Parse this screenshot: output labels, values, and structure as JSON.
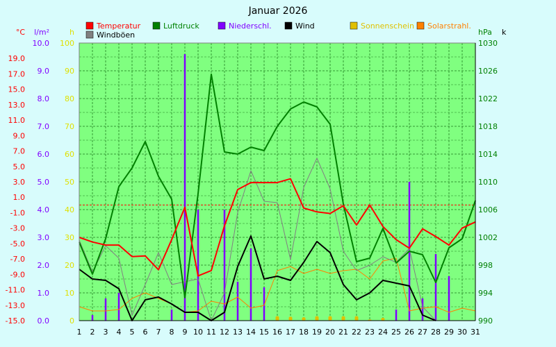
{
  "chart_data": {
    "type": "line",
    "title": "Januar 2026",
    "x": [
      1,
      2,
      3,
      4,
      5,
      6,
      7,
      8,
      9,
      10,
      11,
      12,
      13,
      14,
      15,
      16,
      17,
      18,
      19,
      20,
      21,
      22,
      23,
      24,
      25,
      26,
      27,
      28,
      29,
      30,
      31
    ],
    "x_tick_labels": [
      "1",
      "2",
      "3",
      "4",
      "5",
      "6",
      "7",
      "8",
      "9",
      "10",
      "11",
      "12",
      "13",
      "14",
      "15",
      "16",
      "17",
      "18",
      "19",
      "20",
      "21",
      "22",
      "23",
      "24",
      "25",
      "26",
      "27",
      "28",
      "29",
      "30",
      "31"
    ],
    "axes": {
      "temp": {
        "unit": "°C",
        "color": "#ff0000",
        "range": [
          -15,
          21
        ],
        "ticks": [
          "-15.0",
          "-13.0",
          "-11.0",
          "-9.0",
          "-7.0",
          "-5.0",
          "-3.0",
          "-1.0",
          "1.0",
          "3.0",
          "5.0",
          "7.0",
          "9.0",
          "11.0",
          "13.0",
          "15.0",
          "17.0",
          "19.0"
        ],
        "tick_values": [
          -15,
          -13,
          -11,
          -9,
          -7,
          -5,
          -3,
          -1,
          1,
          3,
          5,
          7,
          9,
          11,
          13,
          15,
          17,
          19
        ]
      },
      "rain": {
        "unit": "l/m²",
        "color": "#8000ff",
        "range": [
          0,
          10
        ],
        "ticks": [
          "0.0",
          "1.0",
          "2.0",
          "3.0",
          "4.0",
          "5.0",
          "6.0",
          "7.0",
          "8.0",
          "9.0",
          "10.0"
        ],
        "tick_values": [
          0,
          1,
          2,
          3,
          4,
          5,
          6,
          7,
          8,
          9,
          10
        ]
      },
      "hours": {
        "unit": "h",
        "color": "#e0e000",
        "range": [
          0,
          100
        ],
        "ticks": [
          "0",
          "10",
          "20",
          "30",
          "40",
          "50",
          "60",
          "70",
          "80",
          "90",
          "100"
        ],
        "tick_values": [
          0,
          10,
          20,
          30,
          40,
          50,
          60,
          70,
          80,
          90,
          100
        ]
      },
      "pressure": {
        "unit": "hPa",
        "color": "#008000",
        "range": [
          990,
          1030
        ],
        "ticks": [
          "990",
          "994",
          "998",
          "1002",
          "1006",
          "1010",
          "1014",
          "1018",
          "1022",
          "1026",
          "1030"
        ],
        "tick_values": [
          990,
          994,
          998,
          1002,
          1006,
          1010,
          1014,
          1018,
          1022,
          1026,
          1030
        ]
      },
      "wind": {
        "unit": "k",
        "color": "#000000"
      }
    },
    "reference_line": {
      "axis": "temp",
      "value": 0,
      "color": "#ff0000"
    },
    "series": [
      {
        "name": "Temperatur",
        "axis": "temp",
        "kind": "line",
        "color": "#ff0000",
        "width": 2,
        "values": [
          -4.2,
          -4.8,
          -5.2,
          -5.2,
          -6.7,
          -6.6,
          -8.4,
          -4.5,
          -0.3,
          -9.2,
          -8.5,
          -2.7,
          2.0,
          2.9,
          2.9,
          2.9,
          3.4,
          -0.4,
          -0.9,
          -1.1,
          -0.1,
          -2.6,
          0.0,
          -2.8,
          -4.5,
          -5.6,
          -3.1,
          -4.1,
          -5.2,
          -3.0,
          -2.2
        ]
      },
      {
        "name": "Luftdruck",
        "axis": "pressure",
        "kind": "line",
        "color": "#008000",
        "width": 2,
        "values": [
          1001.3,
          996.7,
          1001.8,
          1009.3,
          1012.0,
          1015.8,
          1010.8,
          1007.5,
          993.3,
          1008.3,
          1025.5,
          1014.3,
          1014.0,
          1015.0,
          1014.5,
          1018.0,
          1020.5,
          1021.5,
          1020.8,
          1018.3,
          1006.8,
          998.5,
          999.0,
          1003.3,
          998.3,
          1000.0,
          999.5,
          995.5,
          1000.5,
          1001.8,
          1007.3
        ]
      },
      {
        "name": "Wind",
        "axis": "hours",
        "kind": "line",
        "color": "#000000",
        "width": 2,
        "values": [
          18.5,
          15.0,
          14.5,
          11.5,
          0.0,
          7.5,
          8.5,
          6.0,
          3.0,
          3.0,
          0.0,
          3.0,
          19.5,
          30.5,
          15.0,
          16.0,
          14.5,
          21.0,
          28.5,
          24.5,
          13.0,
          7.5,
          10.0,
          14.5,
          13.5,
          12.5,
          2.0,
          0.0,
          null,
          null,
          null
        ]
      },
      {
        "name": "Windböen",
        "axis": "hours",
        "kind": "line",
        "color": "#808080",
        "width": 1,
        "values": [
          29.0,
          17.5,
          27.0,
          22.5,
          2.0,
          13.0,
          24.5,
          13.0,
          14.0,
          15.0,
          0.0,
          10.0,
          39.0,
          54.0,
          43.0,
          42.5,
          22.0,
          48.0,
          58.5,
          47.5,
          25.0,
          18.0,
          20.0,
          23.0,
          21.0,
          26.0,
          5.0,
          0.0,
          null,
          null,
          null
        ]
      },
      {
        "name": "Solarstrahl.",
        "axis": "hours",
        "kind": "line",
        "color": "#ff8000",
        "width": 1,
        "values": [
          5.0,
          3.5,
          3.5,
          4.0,
          8.0,
          10.0,
          8.0,
          6.0,
          3.0,
          3.5,
          7.0,
          6.0,
          8.5,
          4.5,
          5.5,
          18.0,
          19.5,
          17.0,
          18.5,
          17.0,
          18.0,
          18.5,
          15.0,
          21.5,
          22.5,
          3.5,
          4.5,
          5.0,
          3.0,
          4.5,
          3.5
        ]
      },
      {
        "name": "Niederschl.",
        "axis": "rain",
        "kind": "bar",
        "color": "#8000ff",
        "values": [
          0.0,
          0.2,
          0.8,
          1.0,
          0.0,
          0.0,
          0.0,
          0.4,
          9.6,
          4.0,
          0.0,
          4.0,
          1.4,
          2.6,
          1.2,
          0.0,
          0.0,
          0.0,
          0.0,
          0.0,
          0.0,
          0.0,
          0.0,
          0.0,
          0.4,
          5.0,
          0.8,
          2.4,
          1.6,
          0.0,
          0.0
        ]
      },
      {
        "name": "Sonnenschein",
        "axis": "hours",
        "kind": "bar",
        "color": "#e0c000",
        "values": [
          0,
          0,
          0,
          0,
          0,
          0.2,
          0.2,
          0,
          0,
          0,
          0,
          0,
          0,
          0,
          0,
          1.6,
          1.4,
          1.2,
          1.6,
          1.6,
          1.6,
          1.6,
          0.4,
          1.0,
          0,
          0,
          0,
          0,
          0,
          0,
          0
        ]
      }
    ],
    "legend": [
      {
        "name": "Temperatur",
        "color": "#ff0000",
        "text_color": "#ff0000"
      },
      {
        "name": "Luftdruck",
        "color": "#008000",
        "text_color": "#008000"
      },
      {
        "name": "Niederschl.",
        "color": "#8000ff",
        "text_color": "#8000ff"
      },
      {
        "name": "Wind",
        "color": "#000000",
        "text_color": "#000000"
      },
      {
        "name": "Sonnenschein",
        "color": "#e0c000",
        "text_color": "#e0c000"
      },
      {
        "name": "Solarstrahl.",
        "color": "#ff8000",
        "text_color": "#ff8000"
      },
      {
        "name": "Windböen",
        "color": "#808080",
        "text_color": "#000000"
      }
    ],
    "grid": true,
    "background": "#80ff80",
    "legend_placement": "top"
  }
}
